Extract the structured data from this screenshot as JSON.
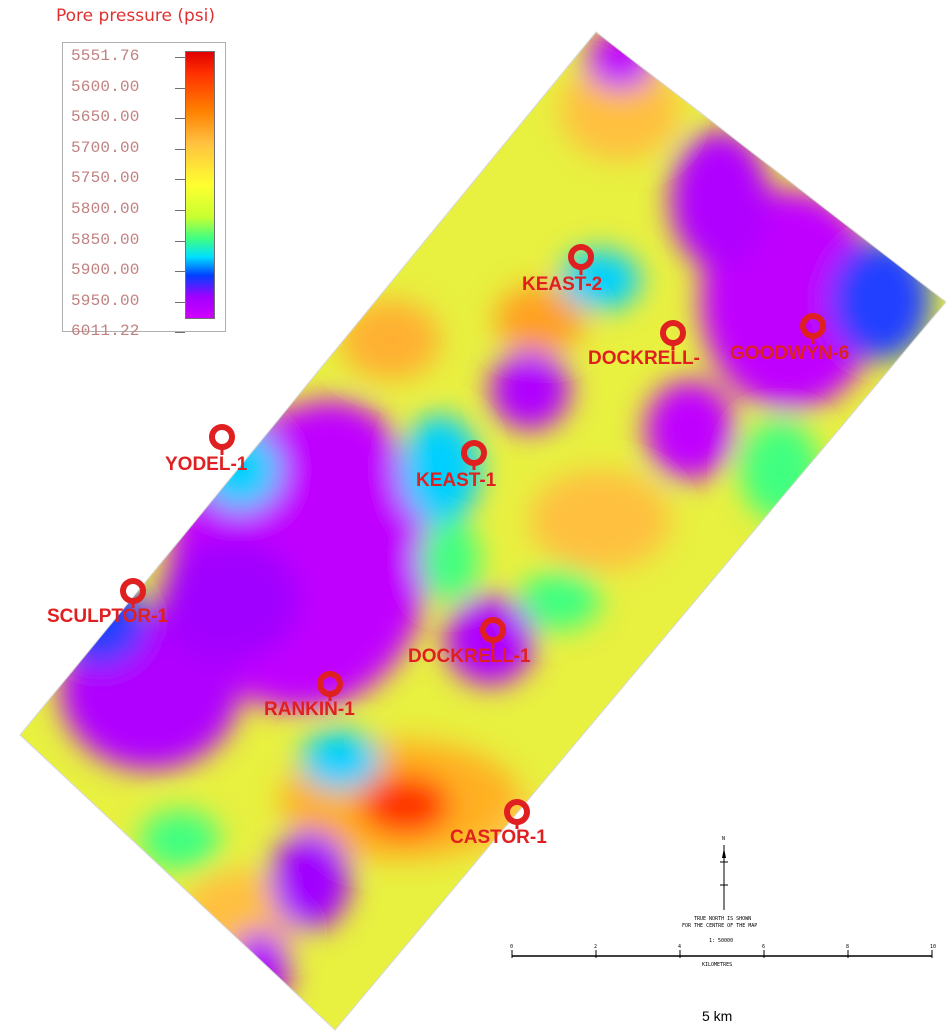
{
  "legend": {
    "title": "Pore pressure (psi)",
    "ticks": [
      "5551.76",
      "5600.00",
      "5650.00",
      "5700.00",
      "5750.00",
      "5800.00",
      "5850.00",
      "5900.00",
      "5950.00",
      "6011.22"
    ],
    "colors": [
      "#e00000",
      "#ff8000",
      "#ffff30",
      "#40ff80",
      "#00e0ff",
      "#0040ff",
      "#d000ff"
    ]
  },
  "wells": [
    {
      "name": "KEAST-2"
    },
    {
      "name": "DOCKRELL-"
    },
    {
      "name": "GOODWYN-6"
    },
    {
      "name": "YODEL-1"
    },
    {
      "name": "KEAST-1"
    },
    {
      "name": "SCULPTOR-1"
    },
    {
      "name": "DOCKRELL-1"
    },
    {
      "name": "RANKIN-1"
    },
    {
      "name": "CASTOR-1"
    }
  ],
  "scale_bar": {
    "north_label": "N",
    "note_line1": "TRUE NORTH IS SHOWN",
    "note_line2": "FOR THE CENTRE OF THE MAP",
    "ratio": "1: 50000",
    "ticks": [
      "0",
      "2",
      "4",
      "6",
      "8",
      "10"
    ],
    "units": "KILOMETRES",
    "caption": "5 km"
  }
}
